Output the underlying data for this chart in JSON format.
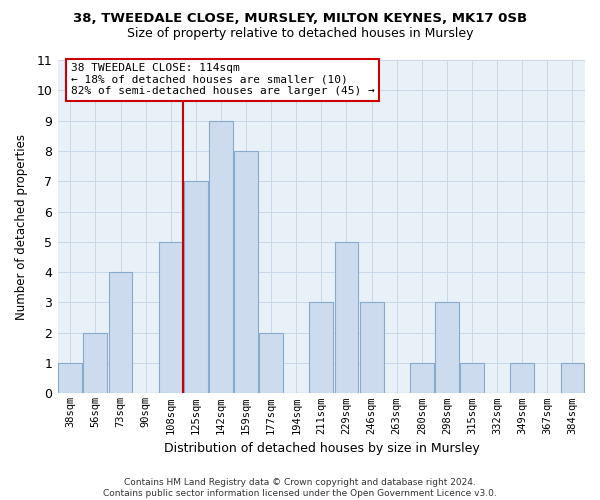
{
  "title": "38, TWEEDALE CLOSE, MURSLEY, MILTON KEYNES, MK17 0SB",
  "subtitle": "Size of property relative to detached houses in Mursley",
  "xlabel": "Distribution of detached houses by size in Mursley",
  "ylabel": "Number of detached properties",
  "bar_color": "#ccdcee",
  "bar_edge_color": "#88aacc",
  "categories": [
    "38sqm",
    "56sqm",
    "73sqm",
    "90sqm",
    "108sqm",
    "125sqm",
    "142sqm",
    "159sqm",
    "177sqm",
    "194sqm",
    "211sqm",
    "229sqm",
    "246sqm",
    "263sqm",
    "280sqm",
    "298sqm",
    "315sqm",
    "332sqm",
    "349sqm",
    "367sqm",
    "384sqm"
  ],
  "values": [
    1,
    2,
    4,
    0,
    5,
    7,
    9,
    8,
    2,
    0,
    3,
    5,
    3,
    0,
    1,
    3,
    1,
    0,
    1,
    0,
    1
  ],
  "ylim": [
    0,
    11
  ],
  "yticks": [
    0,
    1,
    2,
    3,
    4,
    5,
    6,
    7,
    8,
    9,
    10,
    11
  ],
  "property_line_x": 4.5,
  "property_line_color": "#cc0000",
  "annotation_line1": "38 TWEEDALE CLOSE: 114sqm",
  "annotation_line2": "← 18% of detached houses are smaller (10)",
  "annotation_line3": "82% of semi-detached houses are larger (45) →",
  "annotation_box_color": "#ffffff",
  "annotation_box_edge": "#cc0000",
  "footer_text": "Contains HM Land Registry data © Crown copyright and database right 2024.\nContains public sector information licensed under the Open Government Licence v3.0.",
  "background_color": "#ffffff",
  "plot_bg_color": "#e8f0f8",
  "grid_color": "#c8d8e8"
}
